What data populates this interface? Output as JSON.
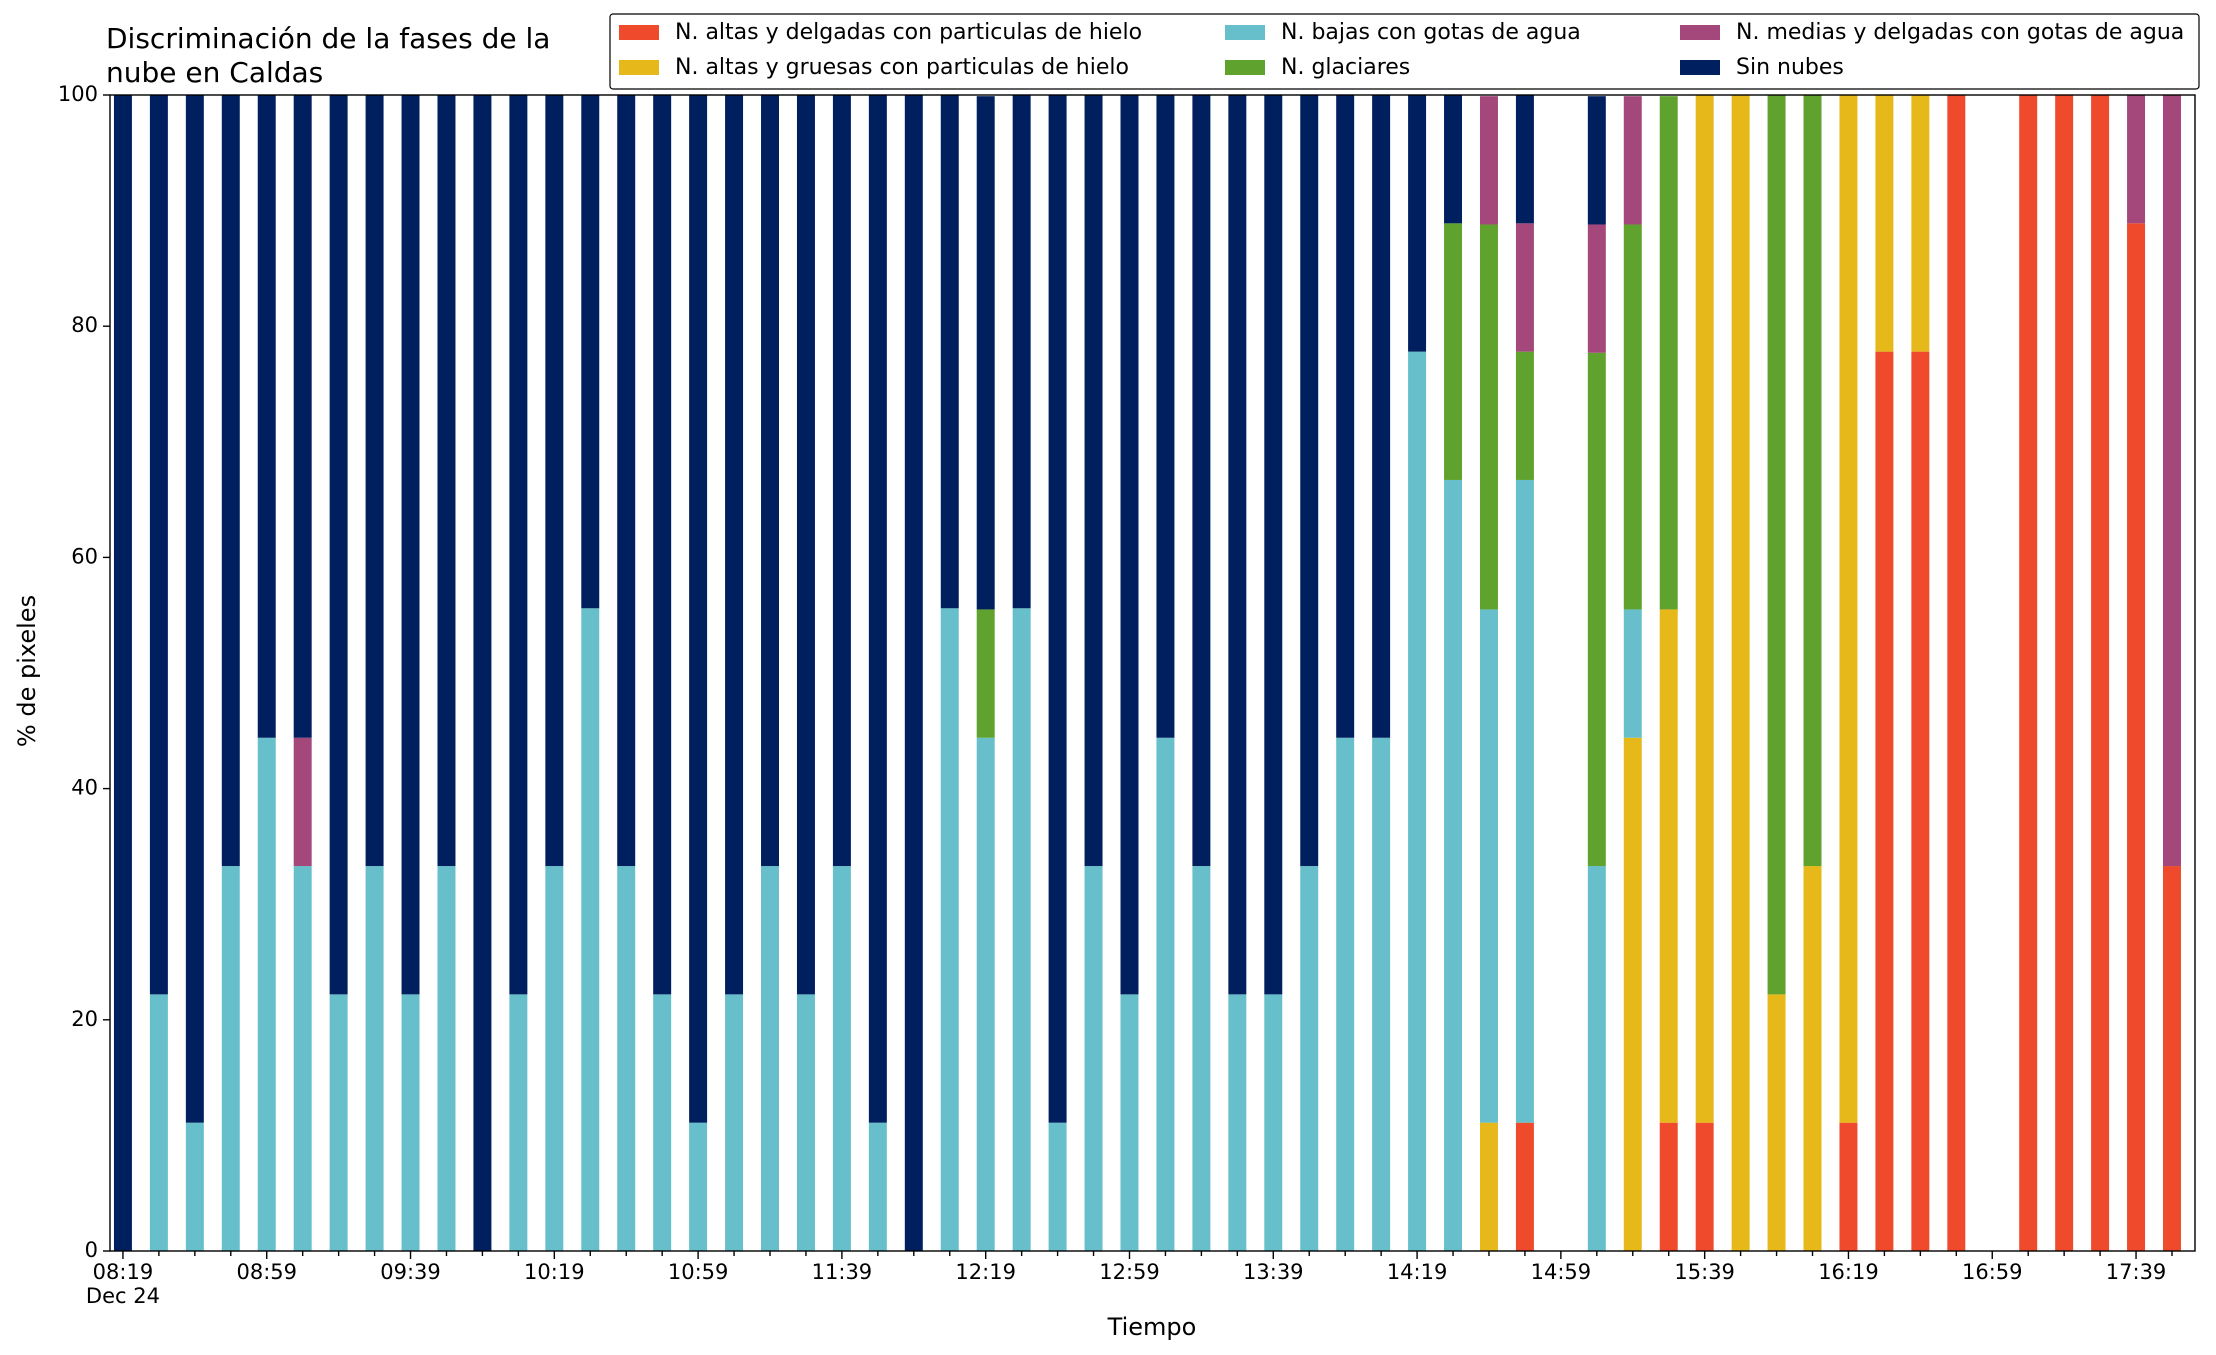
{
  "chart_data": {
    "type": "stacked_bar",
    "title": [
      "Discriminación de la fases de la",
      "nube en Caldas"
    ],
    "xlabel": "Tiempo",
    "ylabel": "% de pixeles",
    "date_label": "Dec 24",
    "categories": [
      "08:19",
      null,
      null,
      null,
      "08:59",
      null,
      null,
      null,
      "09:39",
      null,
      null,
      null,
      "10:19",
      null,
      null,
      null,
      "10:59",
      null,
      null,
      null,
      "11:39",
      null,
      null,
      null,
      "12:19",
      null,
      null,
      null,
      "12:59",
      null,
      null,
      null,
      "13:39",
      null,
      null,
      null,
      "14:19",
      null,
      null,
      null,
      "14:59",
      null,
      null,
      null,
      "15:39",
      null,
      null,
      null,
      "16:19",
      null,
      null,
      null,
      "16:59",
      null,
      null,
      null,
      "17:39",
      null
    ],
    "series": [
      {
        "name": "N. altas y delgadas con particulas de hielo",
        "color": "#ef4a2b",
        "values": [
          0,
          0,
          0,
          0,
          0,
          0,
          0,
          0,
          0,
          0,
          0,
          0,
          0,
          0,
          0,
          0,
          0,
          0,
          0,
          0,
          0,
          0,
          0,
          0,
          0,
          0,
          0,
          0,
          0,
          0,
          0,
          0,
          0,
          0,
          0,
          0,
          0,
          0,
          0,
          11.1,
          null,
          0,
          0,
          11.1,
          11.1,
          0,
          0,
          0,
          11.1,
          77.8,
          77.8,
          100,
          null,
          100,
          100,
          100,
          88.9,
          33.3
        ]
      },
      {
        "name": "N. altas y gruesas con particulas de hielo",
        "color": "#e6b819",
        "values": [
          0,
          0,
          0,
          0,
          0,
          0,
          0,
          0,
          0,
          0,
          0,
          0,
          0,
          0,
          0,
          0,
          0,
          0,
          0,
          0,
          0,
          0,
          0,
          0,
          0,
          0,
          0,
          0,
          0,
          0,
          0,
          0,
          0,
          0,
          0,
          0,
          0,
          0,
          11.1,
          0,
          null,
          0,
          44.4,
          44.4,
          88.9,
          100,
          22.2,
          33.3,
          88.9,
          22.2,
          22.2,
          0,
          null,
          0,
          0,
          0,
          0,
          0
        ]
      },
      {
        "name": "N. bajas con gotas de agua",
        "color": "#66bfca",
        "values": [
          0,
          22.2,
          11.1,
          33.3,
          44.4,
          33.3,
          22.2,
          33.3,
          22.2,
          33.3,
          0,
          22.2,
          33.3,
          55.6,
          33.3,
          22.2,
          11.1,
          22.2,
          33.3,
          22.2,
          33.3,
          11.1,
          0,
          55.6,
          44.4,
          55.6,
          11.1,
          33.3,
          22.2,
          44.4,
          33.3,
          22.2,
          22.2,
          33.3,
          44.4,
          44.4,
          77.8,
          66.7,
          44.4,
          55.6,
          null,
          33.3,
          11.1,
          0,
          0,
          0,
          0,
          0,
          0,
          0,
          0,
          0,
          null,
          0,
          0,
          0,
          0,
          0
        ]
      },
      {
        "name": "N. glaciares",
        "color": "#5fa22d",
        "values": [
          0,
          0,
          0,
          0,
          0,
          0,
          0,
          0,
          0,
          0,
          0,
          0,
          0,
          0,
          0,
          0,
          0,
          0,
          0,
          0,
          0,
          0,
          0,
          0,
          11.1,
          0,
          0,
          0,
          0,
          0,
          0,
          0,
          0,
          0,
          0,
          0,
          0,
          22.2,
          33.3,
          11.1,
          null,
          44.4,
          33.3,
          44.4,
          0,
          0,
          77.8,
          66.7,
          0,
          0,
          0,
          0,
          null,
          0,
          0,
          0,
          0,
          0
        ]
      },
      {
        "name": "N. medias y delgadas con gotas de agua",
        "color": "#a4477b",
        "values": [
          0,
          0,
          0,
          0,
          0,
          11.1,
          0,
          0,
          0,
          0,
          0,
          0,
          0,
          0,
          0,
          0,
          0,
          0,
          0,
          0,
          0,
          0,
          0,
          0,
          0,
          0,
          0,
          0,
          0,
          0,
          0,
          0,
          0,
          0,
          0,
          0,
          0,
          0,
          11.1,
          11.1,
          null,
          11.1,
          11.1,
          0,
          0,
          0,
          0,
          0,
          0,
          0,
          0,
          0,
          null,
          0,
          0,
          0,
          11.1,
          66.7
        ]
      },
      {
        "name": "Sin nubes",
        "color": "#001f5e",
        "values": [
          100,
          77.8,
          88.9,
          66.7,
          55.6,
          55.6,
          77.8,
          66.7,
          77.8,
          66.7,
          100,
          77.8,
          66.7,
          44.4,
          66.7,
          77.8,
          88.9,
          77.8,
          66.7,
          77.8,
          66.7,
          88.9,
          100,
          44.4,
          44.4,
          44.4,
          88.9,
          66.7,
          77.8,
          55.6,
          66.7,
          77.8,
          77.8,
          66.7,
          55.6,
          55.6,
          22.2,
          11.1,
          0,
          11.1,
          null,
          11.1,
          0,
          0,
          0,
          0,
          0,
          0,
          0,
          0,
          0,
          0,
          null,
          0,
          0,
          0,
          0,
          0
        ]
      }
    ],
    "ylim": [
      0,
      100
    ],
    "yticks": [
      0,
      20,
      40,
      60,
      80,
      100
    ],
    "grid": false,
    "legend": "upper right"
  }
}
